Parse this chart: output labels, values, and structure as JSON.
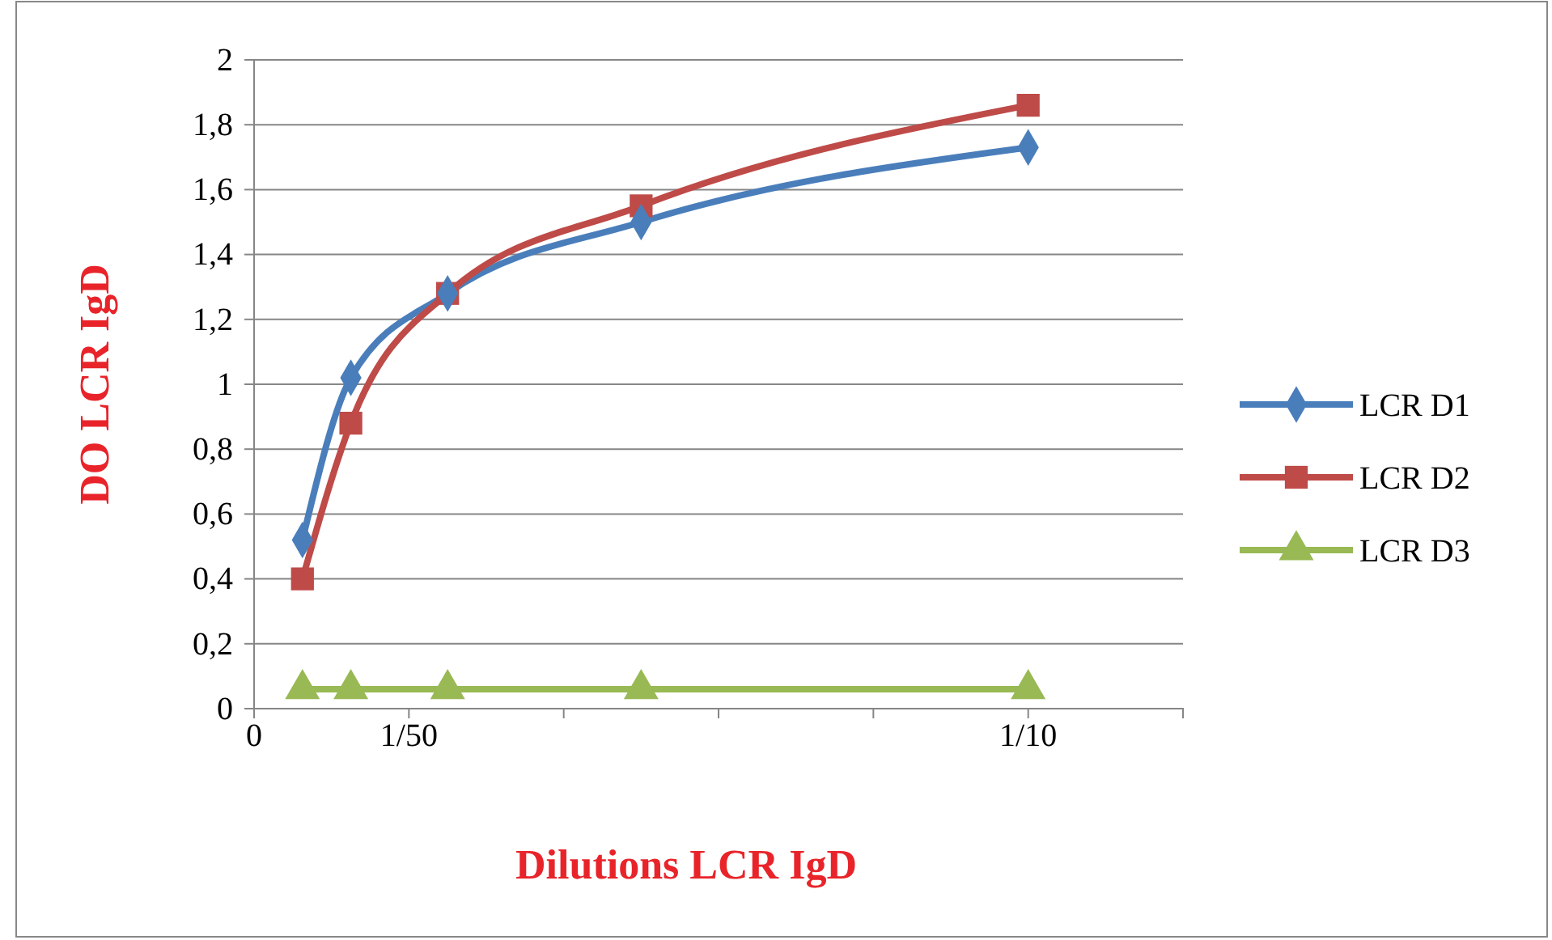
{
  "chart_data": {
    "type": "line",
    "xlabel": "Dilutions LCR IgD",
    "ylabel": "DO LCR IgD",
    "xlim": [
      0,
      0.12
    ],
    "xticks": [
      0,
      {
        "value": 0.02,
        "label": "1/50"
      },
      {
        "value": 0.04,
        "label": null
      },
      {
        "value": 0.06,
        "label": null
      },
      {
        "value": 0.08,
        "label": null
      },
      {
        "value": 0.1,
        "label": "1/10"
      },
      {
        "value": 0.12,
        "label": null
      }
    ],
    "ylim": [
      0,
      2
    ],
    "yticks": [
      0,
      {
        "value": 0.2,
        "label": "0,2"
      },
      {
        "value": 0.4,
        "label": "0,4"
      },
      {
        "value": 0.6,
        "label": "0,6"
      },
      {
        "value": 0.8,
        "label": "0,8"
      },
      1,
      {
        "value": 1.2,
        "label": "1,2"
      },
      {
        "value": 1.4,
        "label": "1,4"
      },
      {
        "value": 1.6,
        "label": "1,6"
      },
      {
        "value": 1.8,
        "label": "1,8"
      },
      2
    ],
    "x": [
      0.00625,
      0.0125,
      0.025,
      0.05,
      0.1
    ],
    "grid": "y",
    "legend": "right",
    "series": [
      {
        "name": "LCR D1",
        "color": "#4a7ebb",
        "marker": "diamond",
        "values": [
          0.52,
          1.02,
          1.28,
          1.5,
          1.73
        ]
      },
      {
        "name": "LCR D2",
        "color": "#be4b48",
        "marker": "square",
        "values": [
          0.4,
          0.88,
          1.28,
          1.55,
          1.86
        ]
      },
      {
        "name": "LCR D3",
        "color": "#98b954",
        "marker": "triangle",
        "values": [
          0.06,
          0.06,
          0.06,
          0.06,
          0.06
        ]
      }
    ]
  }
}
